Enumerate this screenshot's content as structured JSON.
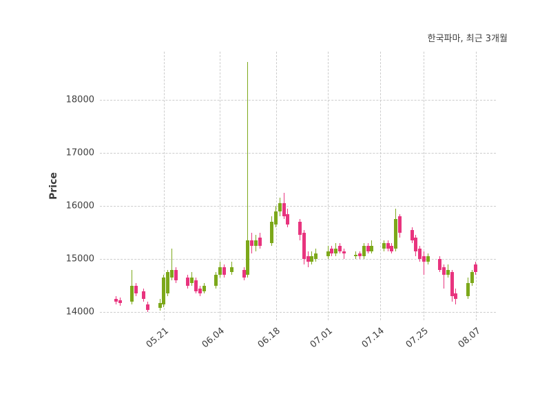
{
  "chart_data": {
    "type": "candlestick",
    "title": "한국파마, 최근 3개월",
    "ylabel": "Price",
    "xlabel": "",
    "ylim": [
      13850,
      18900
    ],
    "y_ticks": [
      14000,
      15000,
      16000,
      17000,
      18000
    ],
    "x_axis": {
      "start": "05.05",
      "end": "08.12",
      "tick_labels": [
        "05.21",
        "06.04",
        "06.18",
        "07.01",
        "07.14",
        "07.25",
        "08.07"
      ]
    },
    "grid": "dashed",
    "legend": "none",
    "colors": {
      "up": "#7CA81A",
      "down": "#E8347E",
      "grid": "#cccccc",
      "text": "#3d3d3d"
    },
    "ohlc_columns": [
      "date",
      "open",
      "high",
      "low",
      "close"
    ],
    "ohlc": [
      [
        "05.09",
        14250,
        14300,
        14150,
        14200
      ],
      [
        "05.10",
        14230,
        14280,
        14120,
        14180
      ],
      [
        "05.13",
        14200,
        14800,
        14150,
        14500
      ],
      [
        "05.14",
        14500,
        14550,
        14300,
        14350
      ],
      [
        "05.16",
        14400,
        14450,
        14200,
        14250
      ],
      [
        "05.17",
        14150,
        14200,
        14000,
        14050
      ],
      [
        "05.20",
        14080,
        14250,
        14030,
        14180
      ],
      [
        "05.21",
        14150,
        14700,
        14100,
        14650
      ],
      [
        "05.22",
        14350,
        14800,
        14300,
        14750
      ],
      [
        "05.23",
        14650,
        15200,
        14600,
        14800
      ],
      [
        "05.24",
        14800,
        14850,
        14550,
        14600
      ],
      [
        "05.27",
        14650,
        14700,
        14450,
        14500
      ],
      [
        "05.28",
        14550,
        14750,
        14500,
        14650
      ],
      [
        "05.29",
        14600,
        14650,
        14350,
        14400
      ],
      [
        "05.30",
        14450,
        14500,
        14300,
        14350
      ],
      [
        "05.31",
        14400,
        14550,
        14350,
        14500
      ],
      [
        "06.03",
        14500,
        14750,
        14450,
        14700
      ],
      [
        "06.04",
        14700,
        14950,
        14650,
        14850
      ],
      [
        "06.05",
        14850,
        14900,
        14650,
        14700
      ],
      [
        "06.07",
        14750,
        14950,
        14700,
        14850
      ],
      [
        "06.10",
        14800,
        14850,
        14600,
        14650
      ],
      [
        "06.11",
        14700,
        18700,
        14650,
        15350
      ],
      [
        "06.12",
        15350,
        15500,
        15100,
        15250
      ],
      [
        "06.13",
        15250,
        15450,
        15150,
        15350
      ],
      [
        "06.14",
        15400,
        15500,
        15200,
        15250
      ],
      [
        "06.17",
        15300,
        15800,
        15250,
        15700
      ],
      [
        "06.18",
        15650,
        16000,
        15600,
        15900
      ],
      [
        "06.19",
        15900,
        16150,
        15800,
        16050
      ],
      [
        "06.20",
        16050,
        16250,
        15750,
        15800
      ],
      [
        "06.21",
        15850,
        15950,
        15600,
        15650
      ],
      [
        "06.24",
        15700,
        15750,
        15350,
        15450
      ],
      [
        "06.25",
        15500,
        15550,
        14900,
        15000
      ],
      [
        "06.26",
        15050,
        15150,
        14850,
        14950
      ],
      [
        "06.27",
        14950,
        15150,
        14900,
        15050
      ],
      [
        "06.28",
        15000,
        15200,
        14950,
        15100
      ],
      [
        "07.01",
        15050,
        15250,
        15000,
        15150
      ],
      [
        "07.02",
        15200,
        15250,
        15050,
        15100
      ],
      [
        "07.03",
        15100,
        15300,
        15050,
        15200
      ],
      [
        "07.04",
        15250,
        15300,
        15100,
        15150
      ],
      [
        "07.05",
        15150,
        15200,
        15000,
        15100
      ],
      [
        "07.08",
        15050,
        15150,
        15000,
        15080
      ],
      [
        "07.09",
        15100,
        15150,
        15000,
        15050
      ],
      [
        "07.10",
        15050,
        15300,
        15000,
        15250
      ],
      [
        "07.11",
        15250,
        15300,
        15100,
        15150
      ],
      [
        "07.12",
        15150,
        15350,
        15100,
        15250
      ],
      [
        "07.15",
        15200,
        15350,
        15150,
        15300
      ],
      [
        "07.16",
        15300,
        15350,
        15150,
        15200
      ],
      [
        "07.17",
        15250,
        15300,
        15100,
        15150
      ],
      [
        "07.18",
        15200,
        15950,
        15150,
        15750
      ],
      [
        "07.19",
        15800,
        15850,
        15400,
        15500
      ],
      [
        "07.22",
        15550,
        15600,
        15300,
        15350
      ],
      [
        "07.23",
        15400,
        15450,
        15050,
        15150
      ],
      [
        "07.24",
        15200,
        15250,
        14950,
        15000
      ],
      [
        "07.25",
        15050,
        15150,
        14700,
        14950
      ],
      [
        "07.26",
        14950,
        15100,
        14900,
        15050
      ],
      [
        "07.29",
        15000,
        15050,
        14750,
        14800
      ],
      [
        "07.30",
        14850,
        14900,
        14450,
        14700
      ],
      [
        "07.31",
        14700,
        14900,
        14650,
        14800
      ],
      [
        "08.01",
        14750,
        14800,
        14200,
        14300
      ],
      [
        "08.02",
        14350,
        14450,
        14150,
        14250
      ],
      [
        "08.05",
        14300,
        14650,
        14250,
        14550
      ],
      [
        "08.06",
        14550,
        14800,
        14500,
        14750
      ],
      [
        "08.07",
        14900,
        14950,
        14700,
        14750
      ]
    ]
  }
}
